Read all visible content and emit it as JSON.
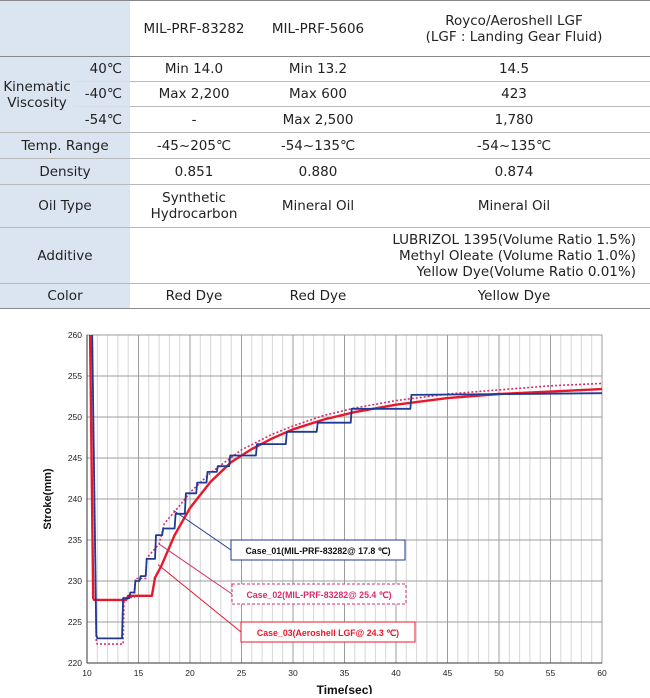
{
  "table": {
    "headers": [
      "",
      "",
      "MIL-PRF-83282",
      "MIL-PRF-5606",
      "Royco/Aeroshell LGF",
      "(LGF : Landing Gear Fluid)"
    ],
    "kinematic_label_1": "Kinematic",
    "kinematic_label_2": "Viscosity",
    "visc_rows": [
      {
        "temp": "40℃",
        "a": "Min 14.0",
        "b": "Min 13.2",
        "c": "14.5"
      },
      {
        "temp": "-40℃",
        "a": "Max 2,200",
        "b": "Max 600",
        "c": "423"
      },
      {
        "temp": "-54℃",
        "a": "-",
        "b": "Max 2,500",
        "c": "1,780"
      }
    ],
    "temp_range": {
      "label": "Temp. Range",
      "a": "-45~205℃",
      "b": "-54~135℃",
      "c": "-54~135℃"
    },
    "density": {
      "label": "Density",
      "a": "0.851",
      "b": "0.880",
      "c": "0.874"
    },
    "oil_type": {
      "label": "Oil Type",
      "a1": "Synthetic",
      "a2": "Hydrocarbon",
      "b": "Mineral Oil",
      "c": "Mineral Oil"
    },
    "additive": {
      "label": "Additive",
      "a": "",
      "b": "",
      "c1": "LUBRIZOL 1395(Volume Ratio 1.5%)",
      "c2": "Methyl Oleate (Volume Ratio 1.0%)",
      "c3": "Yellow Dye(Volume Ratio 0.01%)"
    },
    "color": {
      "label": "Color",
      "a": "Red Dye",
      "b": "Red Dye",
      "c": "Yellow Dye"
    }
  },
  "chart_data": {
    "type": "line",
    "xlabel": "Time(sec)",
    "ylabel": "Stroke(mm)",
    "xlim": [
      10,
      60
    ],
    "ylim": [
      220,
      260
    ],
    "xticks": [
      10,
      15,
      20,
      25,
      30,
      35,
      40,
      45,
      50,
      55,
      60
    ],
    "yticks": [
      220,
      225,
      230,
      235,
      240,
      245,
      250,
      255,
      260
    ],
    "grid": true,
    "series": [
      {
        "name": "Case_01(MIL-PRF-83282@ 17.8 ℃)",
        "color": "#1f3a93",
        "style": "solid",
        "x": [
          10.5,
          10.9,
          11.0,
          13.4,
          13.5,
          14.1,
          14.2,
          14.6,
          14.7,
          15.1,
          15.2,
          15.7,
          15.8,
          16.6,
          16.7,
          17.3,
          17.4,
          18.5,
          18.6,
          19.5,
          19.6,
          20.6,
          20.7,
          21.6,
          21.7,
          22.6,
          22.7,
          23.8,
          23.9,
          26.4,
          26.5,
          29.3,
          29.4,
          32.3,
          32.4,
          35.6,
          35.7,
          41.4,
          41.5,
          60.0
        ],
        "y": [
          260,
          223.4,
          223.0,
          223.0,
          227.9,
          227.9,
          228.6,
          228.6,
          230.0,
          230.0,
          230.6,
          230.6,
          232.7,
          232.7,
          235.6,
          235.6,
          236.4,
          236.4,
          238.2,
          238.2,
          240.7,
          240.7,
          242.0,
          242.0,
          243.3,
          243.3,
          244.0,
          244.0,
          245.3,
          245.3,
          246.7,
          246.7,
          248.2,
          248.2,
          249.3,
          249.3,
          251.0,
          251.0,
          252.7,
          252.9
        ]
      },
      {
        "name": "Case_02(MIL-PRF-83282@ 25.4 ℃)",
        "color": "#d62c6c",
        "style": "dotted",
        "x": [
          10.5,
          10.9,
          11.0,
          13.5,
          13.6,
          14.6,
          14.7,
          15.7,
          15.8,
          17.0,
          17.5,
          19.0,
          20.0,
          22.0,
          25.0,
          28.0,
          30.0,
          33.0,
          36.0,
          40.0,
          45.0,
          50.0,
          55.0,
          60.0
        ],
        "y": [
          260,
          222.6,
          222.3,
          222.3,
          228.0,
          228.0,
          230.3,
          230.3,
          232.8,
          234.5,
          237.0,
          239.2,
          240.8,
          243.2,
          246.0,
          247.9,
          248.9,
          250.2,
          251.1,
          252.0,
          252.8,
          253.3,
          253.8,
          254.1
        ]
      },
      {
        "name": "Case_03(Aeroshell LGF@ 24.3 ℃)",
        "color": "#e8182c",
        "style": "solid",
        "x": [
          10.3,
          10.6,
          10.7,
          13.8,
          14.0,
          16.3,
          16.6,
          17.2,
          18.5,
          20.0,
          22.0,
          24.0,
          26.0,
          28.0,
          30.0,
          33.0,
          36.0,
          40.0,
          45.0,
          50.0,
          55.0,
          60.0
        ],
        "y": [
          260,
          227.9,
          227.7,
          227.7,
          228.2,
          228.2,
          230.4,
          231.8,
          235.6,
          238.9,
          242.1,
          244.5,
          246.1,
          247.4,
          248.5,
          249.7,
          250.6,
          251.5,
          252.3,
          252.8,
          253.1,
          253.4
        ]
      }
    ],
    "annotations": [
      {
        "text": "Case_01(MIL-PRF-83282@ 17.8 ℃)",
        "color": "#1f3a93",
        "border": "solid",
        "target": [
          18.4,
          238.6
        ]
      },
      {
        "text": "Case_02(MIL-PRF-83282@ 25.4 ℃)",
        "color": "#d62c6c",
        "border": "dashed",
        "target": [
          17.0,
          234.5
        ]
      },
      {
        "text": "Case_03(Aeroshell LGF@ 24.3 ℃)",
        "color": "#e8182c",
        "border": "solid",
        "target": [
          16.9,
          232.0
        ]
      }
    ]
  }
}
